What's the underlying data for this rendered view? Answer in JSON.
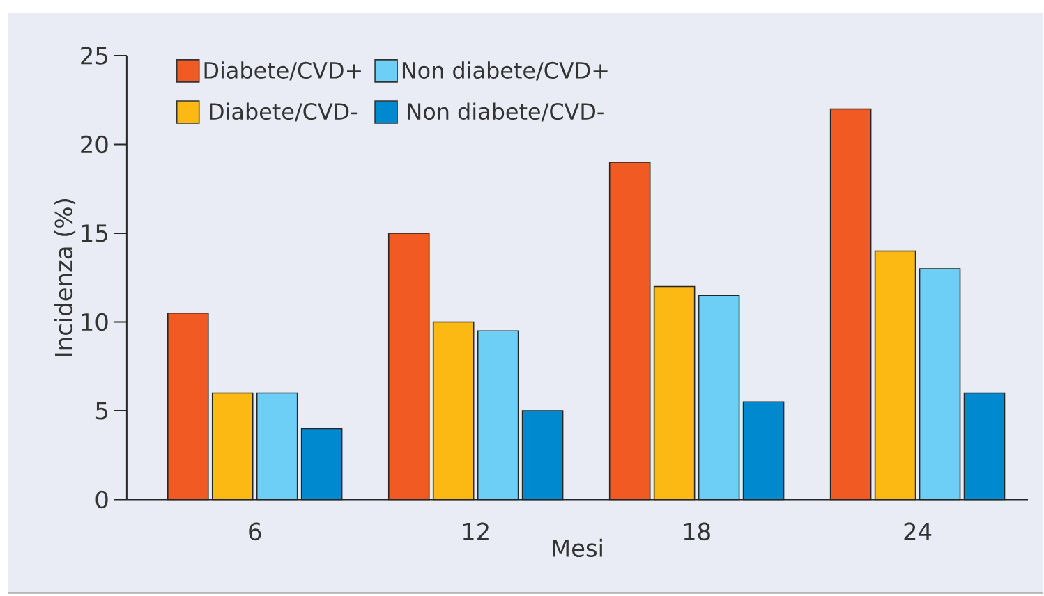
{
  "chart_data": {
    "type": "bar",
    "xlabel": "Mesi",
    "ylabel": "Incidenza (%)",
    "categories": [
      "6",
      "12",
      "18",
      "24"
    ],
    "series": [
      {
        "name": "Diabete/CVD+",
        "color": "#f15a22",
        "values": [
          10.5,
          15,
          19,
          22
        ]
      },
      {
        "name": "Diabete/CVD-",
        "color": "#fdb913",
        "values": [
          6,
          10,
          12,
          14
        ]
      },
      {
        "name": "Non diabete/CVD+",
        "color": "#6dcff6",
        "values": [
          6,
          9.5,
          11.5,
          13
        ]
      },
      {
        "name": "Non diabete/CVD-",
        "color": "#0089cf",
        "values": [
          4,
          5,
          5.5,
          6
        ]
      }
    ],
    "ylim": [
      0,
      25
    ],
    "yticks": [
      0,
      5,
      10,
      15,
      20,
      25
    ],
    "grid": false,
    "legend": "top left"
  }
}
